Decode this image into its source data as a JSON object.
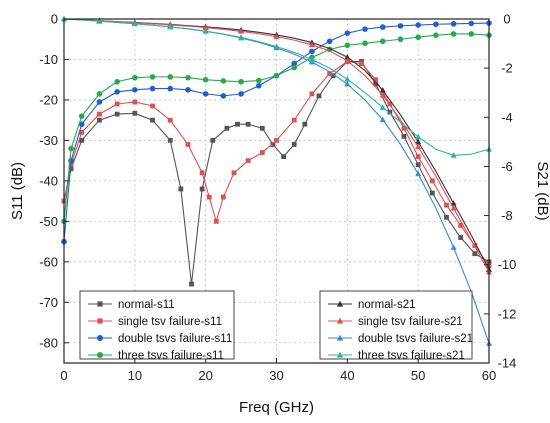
{
  "chart_data": {
    "type": "line",
    "xlabel": "Freq (GHz)",
    "ylabel_left": "S11 (dB)",
    "ylabel_right": "S21 (dB)",
    "xlim": [
      0,
      60
    ],
    "ylim_left": [
      -85,
      0
    ],
    "ylim_right": [
      -14,
      0
    ],
    "x_ticks": [
      "0",
      "10",
      "20",
      "30",
      "40",
      "50",
      "60"
    ],
    "y_ticks_left": [
      "0",
      "-10",
      "-20",
      "-30",
      "-40",
      "-50",
      "-60",
      "-70",
      "-80"
    ],
    "y_ticks_right": [
      "0",
      "-2",
      "-4",
      "-6",
      "-8",
      "-10",
      "-12",
      "-14"
    ],
    "grid": true,
    "legend_left_placement": "bottom-left",
    "legend_right_placement": "bottom-right",
    "series": [
      {
        "name": "normal-s11",
        "axis": "left",
        "color": "#555555",
        "marker": "square",
        "x": [
          0,
          1,
          2.5,
          5,
          7.5,
          10,
          12.5,
          15,
          16.5,
          18,
          19.5,
          21,
          23,
          24.5,
          26,
          28,
          29.5,
          31,
          32.5,
          34,
          36,
          38,
          40,
          42,
          44,
          46,
          48,
          50,
          52,
          54,
          56,
          58,
          60
        ],
        "y": [
          -45,
          -37,
          -30,
          -25,
          -23.5,
          -23.3,
          -25,
          -30,
          -42,
          -65.5,
          -42,
          -30,
          -27,
          -26,
          -26,
          -27,
          -31,
          -34,
          -31,
          -26,
          -19,
          -14,
          -10.5,
          -10.5,
          -16,
          -23,
          -29,
          -36,
          -43,
          -49,
          -54,
          -58,
          -60
        ]
      },
      {
        "name": "single tsv failure-s11",
        "axis": "left",
        "color": "#e05050",
        "marker": "square",
        "x": [
          0,
          1,
          2.5,
          5,
          7.5,
          10,
          12.5,
          15,
          17.5,
          19.5,
          20.5,
          21.5,
          22.5,
          24,
          26,
          28,
          30,
          32.5,
          35,
          37.5,
          40,
          42,
          44,
          46,
          48,
          50,
          52,
          54,
          56,
          58,
          60
        ],
        "y": [
          -45,
          -36,
          -28,
          -23.5,
          -21,
          -20.5,
          -21.5,
          -25,
          -31,
          -38,
          -44,
          -50,
          -44,
          -38,
          -35,
          -33,
          -30,
          -25,
          -18.5,
          -13.5,
          -10.5,
          -11,
          -15,
          -21,
          -27,
          -34,
          -40,
          -46,
          -51,
          -56,
          -61
        ]
      },
      {
        "name": "double tsvs failure-s11",
        "axis": "left",
        "color": "#1f5fd6",
        "marker": "circle",
        "x": [
          0,
          1,
          2.5,
          5,
          7.5,
          10,
          12.5,
          15,
          17.5,
          20,
          22.5,
          25,
          27.5,
          30,
          32.5,
          35,
          37.5,
          40,
          42.5,
          45,
          47.5,
          50,
          52.5,
          55,
          57.5,
          60
        ],
        "y": [
          -55,
          -35,
          -26,
          -20.5,
          -18,
          -17.5,
          -17.2,
          -17.2,
          -17.5,
          -18.5,
          -19,
          -18.5,
          -16.5,
          -14,
          -11,
          -8,
          -5.5,
          -3.5,
          -2.5,
          -2,
          -1.7,
          -1.5,
          -1.3,
          -1.2,
          -1.1,
          -1
        ]
      },
      {
        "name": "three tsvs failure-s11",
        "axis": "left",
        "color": "#2aa84a",
        "marker": "circle",
        "x": [
          0,
          1,
          2.5,
          5,
          7.5,
          10,
          12.5,
          15,
          17.5,
          20,
          22.5,
          25,
          27.5,
          30,
          32.5,
          35,
          37.5,
          40,
          42.5,
          45,
          47.5,
          50,
          52.5,
          55,
          57.5,
          60
        ],
        "y": [
          -50,
          -32,
          -24,
          -18.5,
          -15.5,
          -14.5,
          -14.3,
          -14.3,
          -14.5,
          -15,
          -15.3,
          -15.5,
          -15.2,
          -14,
          -12,
          -9.5,
          -7.5,
          -6.5,
          -6,
          -5.5,
          -5,
          -4.5,
          -4,
          -3.7,
          -3.7,
          -4
        ]
      },
      {
        "name": "normal-s21",
        "axis": "right",
        "color": "#333333",
        "marker": "triangle",
        "x": [
          0,
          2.5,
          5,
          7.5,
          10,
          12.5,
          15,
          17.5,
          20,
          22.5,
          25,
          27.5,
          30,
          32.5,
          35,
          37.5,
          40,
          42.5,
          45,
          47.5,
          50,
          52.5,
          55,
          57.5,
          60
        ],
        "y": [
          0,
          -0.03,
          -0.07,
          -0.11,
          -0.14,
          -0.18,
          -0.22,
          -0.27,
          -0.32,
          -0.38,
          -0.45,
          -0.54,
          -0.65,
          -0.78,
          -0.96,
          -1.2,
          -1.55,
          -2.1,
          -2.9,
          -3.9,
          -5.0,
          -6.2,
          -7.5,
          -8.8,
          -10.2
        ]
      },
      {
        "name": "single tsv failure-s21",
        "axis": "right",
        "color": "#e05050",
        "marker": "triangle",
        "x": [
          0,
          2.5,
          5,
          7.5,
          10,
          12.5,
          15,
          17.5,
          20,
          22.5,
          25,
          27.5,
          30,
          32.5,
          35,
          37.5,
          40,
          42.5,
          45,
          47.5,
          50,
          52.5,
          55,
          57.5,
          60
        ],
        "y": [
          0,
          -0.03,
          -0.07,
          -0.11,
          -0.15,
          -0.19,
          -0.24,
          -0.29,
          -0.35,
          -0.42,
          -0.5,
          -0.6,
          -0.72,
          -0.86,
          -1.05,
          -1.3,
          -1.7,
          -2.3,
          -3.1,
          -4.1,
          -5.2,
          -6.4,
          -7.7,
          -9.0,
          -10.3
        ]
      },
      {
        "name": "double tsvs failure-s21",
        "axis": "right",
        "color": "#3a86e0",
        "marker": "triangle",
        "x": [
          0,
          2.5,
          5,
          7.5,
          10,
          12.5,
          15,
          17.5,
          20,
          22.5,
          25,
          27.5,
          30,
          32.5,
          35,
          37.5,
          40,
          42.5,
          45,
          47.5,
          50,
          52.5,
          55,
          57.5,
          60
        ],
        "y": [
          0,
          -0.04,
          -0.09,
          -0.14,
          -0.19,
          -0.25,
          -0.32,
          -0.4,
          -0.5,
          -0.62,
          -0.77,
          -0.95,
          -1.17,
          -1.43,
          -1.75,
          -2.15,
          -2.65,
          -3.3,
          -4.1,
          -5.1,
          -6.3,
          -7.7,
          -9.3,
          -11.1,
          -13.2
        ]
      },
      {
        "name": "three tsvs failure-s21",
        "axis": "right",
        "color": "#2fb39a",
        "marker": "triangle",
        "x": [
          0,
          2.5,
          5,
          7.5,
          10,
          12.5,
          15,
          17.5,
          20,
          22.5,
          25,
          27.5,
          30,
          32.5,
          35,
          37.5,
          40,
          42.5,
          45,
          47.5,
          50,
          52.5,
          55,
          57.5,
          60
        ],
        "y": [
          0,
          -0.04,
          -0.09,
          -0.14,
          -0.19,
          -0.25,
          -0.32,
          -0.4,
          -0.5,
          -0.61,
          -0.75,
          -0.92,
          -1.12,
          -1.36,
          -1.65,
          -2.0,
          -2.45,
          -3.0,
          -3.6,
          -4.2,
          -4.8,
          -5.3,
          -5.55,
          -5.5,
          -5.3
        ]
      }
    ]
  }
}
